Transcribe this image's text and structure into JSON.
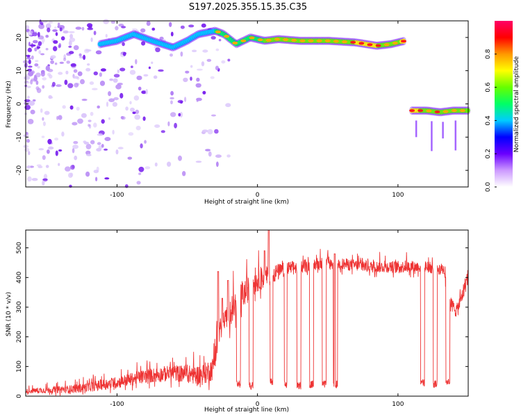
{
  "title": "S197.2025.355.15.35.C35",
  "chart_data": [
    {
      "type": "heatmap",
      "name": "spectrogram",
      "xlabel": "Height of straight line (km)",
      "ylabel": "Frequency (Hz)",
      "xlim": [
        -165,
        150
      ],
      "ylim": [
        -25,
        25
      ],
      "xticks": [
        -100,
        0,
        100
      ],
      "yticks": [
        -20,
        -10,
        0,
        10,
        20
      ],
      "colorbar": {
        "label": "Normalized spectral amplitude",
        "range": [
          0,
          1
        ],
        "ticks": [
          "0.0",
          "0.2",
          "0.4",
          "0.6",
          "0.8"
        ],
        "tick_values": [
          0.0,
          0.2,
          0.4,
          0.6,
          0.8
        ],
        "colors": [
          "#ffffff",
          "#cc99ff",
          "#6a00ff",
          "#0000ff",
          "#00ccff",
          "#00ff66",
          "#66ff00",
          "#ffff00",
          "#ff9900",
          "#ff0000",
          "#ff0066"
        ]
      },
      "ridges": [
        {
          "name": "main-tone",
          "points": [
            [
              -112,
              18
            ],
            [
              -100,
              19
            ],
            [
              -88,
              21
            ],
            [
              -75,
              19
            ],
            [
              -60,
              17
            ],
            [
              -50,
              19
            ],
            [
              -42,
              21
            ],
            [
              -30,
              22
            ],
            [
              -24,
              21
            ],
            [
              -15,
              18
            ],
            [
              -5,
              20
            ],
            [
              5,
              19
            ],
            [
              15,
              19.5
            ],
            [
              30,
              19
            ],
            [
              50,
              19
            ],
            [
              70,
              18.5
            ],
            [
              85,
              17.5
            ],
            [
              95,
              18
            ],
            [
              105,
              19
            ]
          ],
          "amplitudes": [
            0.35,
            0.3,
            0.45,
            0.3,
            0.25,
            0.3,
            0.45,
            0.6,
            0.7,
            0.6,
            0.65,
            0.7,
            0.75,
            0.7,
            0.75,
            0.8,
            0.8,
            0.7,
            0.85
          ]
        },
        {
          "name": "secondary-tone",
          "points": [
            [
              110,
              -2
            ],
            [
              120,
              -2
            ],
            [
              130,
              -2.5
            ],
            [
              140,
              -2
            ],
            [
              150,
              -2
            ]
          ],
          "amplitudes": [
            0.85,
            0.75,
            0.8,
            0.75,
            0.8
          ]
        }
      ],
      "noise_region": {
        "x": [
          -165,
          -20
        ],
        "y": [
          -25,
          25
        ],
        "amplitude": 0.15
      }
    },
    {
      "type": "line",
      "name": "snr",
      "xlabel": "Height of straight line (km)",
      "ylabel": "SNR (10 * v/v)",
      "xlim": [
        -165,
        150
      ],
      "ylim": [
        0,
        560
      ],
      "xticks": [
        -100,
        0,
        100
      ],
      "yticks": [
        0,
        100,
        200,
        300,
        400,
        500
      ],
      "color": "#ee3333",
      "series": [
        {
          "name": "SNR",
          "baseline": [
            [
              -165,
              15
            ],
            [
              -130,
              20
            ],
            [
              -100,
              40
            ],
            [
              -80,
              60
            ],
            [
              -60,
              70
            ],
            [
              -40,
              60
            ],
            [
              -32,
              80
            ],
            [
              -27,
              200
            ],
            [
              -20,
              270
            ],
            [
              -10,
              330
            ],
            [
              0,
              380
            ],
            [
              10,
              400
            ],
            [
              20,
              420
            ],
            [
              30,
              430
            ],
            [
              45,
              440
            ],
            [
              60,
              440
            ],
            [
              80,
              430
            ],
            [
              100,
              430
            ],
            [
              120,
              430
            ],
            [
              133,
              420
            ],
            [
              138,
              300
            ],
            [
              142,
              280
            ],
            [
              145,
              320
            ],
            [
              150,
              400
            ]
          ],
          "noise_amplitude": [
            [
              -165,
              15
            ],
            [
              -100,
              40
            ],
            [
              -50,
              60
            ],
            [
              -30,
              80
            ],
            [
              -20,
              100
            ],
            [
              0,
              80
            ],
            [
              20,
              50
            ],
            [
              60,
              40
            ],
            [
              130,
              40
            ],
            [
              150,
              60
            ]
          ],
          "dropouts": [
            [
              -15,
              -12,
              40
            ],
            [
              -6,
              -3,
              35
            ],
            [
              9,
              11,
              50
            ],
            [
              19,
              21,
              40
            ],
            [
              28,
              31,
              35
            ],
            [
              37,
              40,
              40
            ],
            [
              46,
              49,
              40
            ],
            [
              54,
              57,
              40
            ],
            [
              116,
              119,
              45
            ],
            [
              125,
              128,
              40
            ],
            [
              134,
              137,
              50
            ]
          ],
          "spikes": [
            [
              -28,
              420
            ],
            [
              -25,
              330
            ],
            [
              -21,
              390
            ],
            [
              5,
              490
            ],
            [
              8,
              560
            ],
            [
              55,
              480
            ]
          ]
        }
      ]
    }
  ]
}
